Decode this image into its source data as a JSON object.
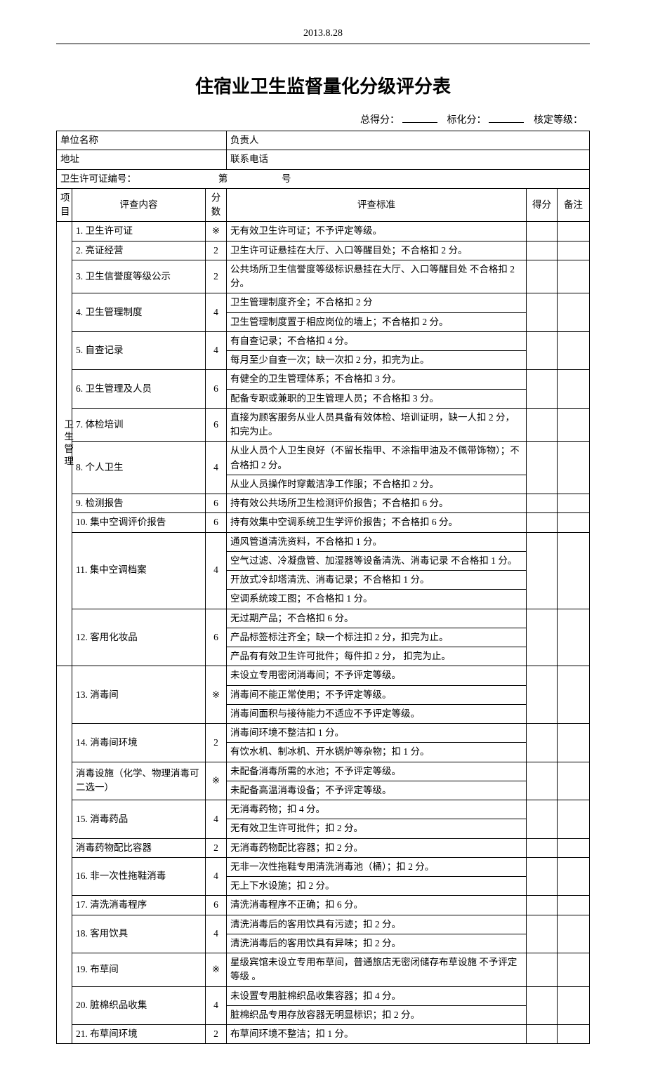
{
  "page_date": "2013.8.28",
  "title": "住宿业卫生监督量化分级评分表",
  "score_labels": {
    "total": "总得分：",
    "standard": "标化分：",
    "grade": "核定等级："
  },
  "info": {
    "unit_label": "单位名称",
    "person_label": "负责人",
    "addr_label": "地址",
    "phone_label": "联系电话",
    "license_label": "卫生许可证编号：",
    "license_mid": "第",
    "license_suffix": "号"
  },
  "columns": {
    "proj": "项目",
    "item": "评查内容",
    "score": "分数",
    "standard": "评查标准",
    "got": "得分",
    "note": "备注"
  },
  "section_label": "卫生管理",
  "rows": [
    {
      "n": "1.",
      "name": "卫生许可证",
      "score": "※",
      "std": [
        "无有效卫生许可证；不予评定等级。"
      ]
    },
    {
      "n": "2.",
      "name": "亮证经营",
      "score": "2",
      "std": [
        "卫生许可证悬挂在大厅、入口等醒目处；不合格扣 2 分。"
      ]
    },
    {
      "n": "3.",
      "name": "卫生信誉度等级公示",
      "score": "2",
      "std": [
        "公共场所卫生信誉度等级标识悬挂在大厅、入口等醒目处 不合格扣 2 分。"
      ]
    },
    {
      "n": "4.",
      "name": "卫生管理制度",
      "score": "4",
      "std": [
        "卫生管理制度齐全；不合格扣 2 分",
        "卫生管理制度置于相应岗位的墙上；不合格扣 2 分。"
      ]
    },
    {
      "n": "5.",
      "name": "自查记录",
      "score": "4",
      "std": [
        "有自查记录；不合格扣 4 分。",
        "每月至少自查一次；缺一次扣 2 分，扣完为止。"
      ]
    },
    {
      "n": "6.",
      "name": "卫生管理及人员",
      "score": "6",
      "std": [
        "有健全的卫生管理体系；不合格扣 3 分。",
        "配备专职或兼职的卫生管理人员；不合格扣 3 分。"
      ]
    },
    {
      "n": "7.",
      "name": "体检培训",
      "score": "6",
      "std": [
        "直接为顾客服务从业人员具备有效体检、培训证明，缺一人扣 2 分，扣完为止。"
      ]
    },
    {
      "n": "8.",
      "name": "个人卫生",
      "score": "4",
      "std": [
        "从业人员个人卫生良好（不留长指甲、不涂指甲油及不佩带饰物）；不合格扣 2 分。",
        "从业人员操作时穿戴洁净工作服；不合格扣 2 分。"
      ]
    },
    {
      "n": "9.",
      "name": "检测报告",
      "score": "6",
      "std": [
        "持有效公共场所卫生检测评价报告；不合格扣 6 分。"
      ]
    },
    {
      "n": "10.",
      "name": "集中空调评价报告",
      "score": "6",
      "std": [
        "持有效集中空调系统卫生学评价报告；不合格扣 6 分。"
      ]
    },
    {
      "n": "11.",
      "name": "集中空调档案",
      "score": "4",
      "std": [
        "通风管道清洗资料，不合格扣 1 分。",
        "空气过滤、冷凝盘管、加湿器等设备清洗、消毒记录 不合格扣 1 分。",
        "开放式冷却塔清洗、消毒记录；不合格扣 1 分。",
        "空调系统竣工图；不合格扣 1 分。"
      ]
    },
    {
      "n": "12.",
      "name": "客用化妆品",
      "score": "6",
      "std": [
        "无过期产品；不合格扣 6 分。",
        "产品标签标注齐全；缺一个标注扣  2 分，扣完为止。",
        "产品有有效卫生许可批件；每件扣 2 分，  扣完为止。"
      ]
    },
    {
      "n": "13.",
      "name": "消毒间",
      "score": "※",
      "std": [
        "未设立专用密闭消毒间；不予评定等级。",
        "消毒间不能正常使用；不予评定等级。",
        "消毒间面积与接待能力不适应不予评定等级。"
      ]
    },
    {
      "n": "14.",
      "name": "消毒间环境",
      "score": "2",
      "std": [
        "消毒间环境不整洁扣 1 分。",
        "有饮水机、制冰机、开水锅炉等杂物；扣 1 分。"
      ]
    },
    {
      "n": "",
      "name": "消毒设施（化学、物理消毒可二选一）",
      "score": "※",
      "std": [
        "未配备消毒所需的水池；不予评定等级。",
        "未配备高温消毒设备；不予评定等级。"
      ]
    },
    {
      "n": "15.",
      "name": "消毒药品",
      "score": "4",
      "std": [
        "无消毒药物；扣 4 分。",
        "无有效卫生许可批件；扣 2 分。"
      ]
    },
    {
      "n": "",
      "name": "  消毒药物配比容器",
      "score": "2",
      "std": [
        "无消毒药物配比容器；扣 2 分。"
      ]
    },
    {
      "n": "16.",
      "name": "非一次性拖鞋消毒",
      "score": "4",
      "std": [
        "无非一次性拖鞋专用清洗消毒池（桶）；扣 2 分。",
        "无上下水设施；扣 2 分。"
      ]
    },
    {
      "n": "17.",
      "name": "清洗消毒程序",
      "score": "6",
      "std": [
        "清洗消毒程序不正确；扣 6 分。"
      ]
    },
    {
      "n": "18.",
      "name": "客用饮具",
      "score": "4",
      "std": [
        "清洗消毒后的客用饮具有污迹；扣 2 分。",
        "清洗消毒后的客用饮具有异味；扣 2 分。"
      ]
    },
    {
      "n": "19.",
      "name": "布草间",
      "score": "※",
      "std": [
        "星级宾馆未设立专用布草间，普通旅店无密闭储存布草设施 不予评定等级  。"
      ]
    },
    {
      "n": "20.",
      "name": "脏棉织品收集",
      "score": "4",
      "std": [
        "未设置专用脏棉织品收集容器；扣 4 分。",
        "脏棉织品专用存放容器无明显标识；扣 2 分。"
      ]
    },
    {
      "n": "21.",
      "name": "布草间环境",
      "score": "2",
      "std": [
        "布草间环境不整洁；扣 1 分。"
      ]
    }
  ]
}
